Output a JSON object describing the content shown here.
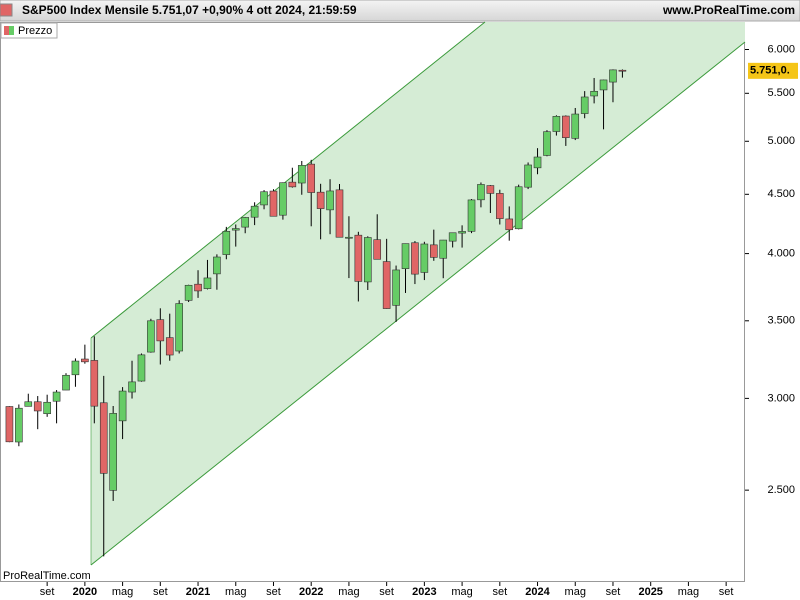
{
  "chart_data": {
    "type": "candlestick",
    "title": "S&P500 Index Mensile 5.751,07 +0,90% 4 ott 2024, 21:59:59",
    "site": "www.ProRealTime.com",
    "watermark": "ProRealTime.com",
    "price_tag": "5.751,0.",
    "log_scale": true,
    "up_color": "#66cc66",
    "down_color": "#e06666",
    "x": [
      "2019-05",
      "2019-06",
      "2019-07",
      "2019-08",
      "2019-09",
      "2019-10",
      "2019-11",
      "2019-12",
      "2020-01",
      "2020-02",
      "2020-03",
      "2020-04",
      "2020-05",
      "2020-06",
      "2020-07",
      "2020-08",
      "2020-09",
      "2020-10",
      "2020-11",
      "2020-12",
      "2021-01",
      "2021-02",
      "2021-03",
      "2021-04",
      "2021-05",
      "2021-06",
      "2021-07",
      "2021-08",
      "2021-09",
      "2021-10",
      "2021-11",
      "2021-12",
      "2022-01",
      "2022-02",
      "2022-03",
      "2022-04",
      "2022-05",
      "2022-06",
      "2022-07",
      "2022-08",
      "2022-09",
      "2022-10",
      "2022-11",
      "2022-12",
      "2023-01",
      "2023-02",
      "2023-03",
      "2023-04",
      "2023-05",
      "2023-06",
      "2023-07",
      "2023-08",
      "2023-09",
      "2023-10",
      "2023-11",
      "2023-12",
      "2024-01",
      "2024-02",
      "2024-03",
      "2024-04",
      "2024-05",
      "2024-06",
      "2024-07",
      "2024-08",
      "2024-09",
      "2024-10"
    ],
    "series": [
      {
        "name": "Prezzo",
        "open": [
          2952,
          2751,
          2953,
          2980,
          2910,
          2983,
          3050,
          3144,
          3244,
          3235,
          2974,
          2499,
          2869,
          3038,
          3105,
          3289,
          3508,
          3385,
          3296,
          3645,
          3764,
          3731,
          3842,
          3992,
          4191,
          4216,
          4300,
          4406,
          4529,
          4317,
          4610,
          4602,
          4778,
          4519,
          4363,
          4540,
          4130,
          4149,
          3781,
          4112,
          3937,
          3609,
          3882,
          4087,
          3853,
          4070,
          3963,
          4100,
          4166,
          4181,
          4451,
          4579,
          4508,
          4285,
          4202,
          4564,
          4743,
          4861,
          5098,
          5257,
          5029,
          5283,
          5471,
          5537,
          5624,
          5758
        ],
        "high": [
          2954,
          2964,
          3028,
          3014,
          3022,
          3050,
          3154,
          3248,
          3338,
          3394,
          3137,
          2955,
          3068,
          3233,
          3280,
          3514,
          3588,
          3550,
          3646,
          3760,
          3870,
          3950,
          3994,
          4218,
          4238,
          4302,
          4429,
          4538,
          4546,
          4608,
          4744,
          4808,
          4819,
          4595,
          4637,
          4593,
          4308,
          4177,
          4140,
          4325,
          4119,
          3906,
          4080,
          4101,
          4095,
          4195,
          4110,
          4170,
          4231,
          4458,
          4607,
          4584,
          4541,
          4393,
          4587,
          4794,
          4932,
          5112,
          5265,
          5264,
          5342,
          5524,
          5670,
          5651,
          5768,
          5767
        ],
        "low": [
          2750,
          2728,
          2952,
          2822,
          2892,
          2855,
          3050,
          3070,
          3214,
          2855,
          2192,
          2447,
          2767,
          2999,
          3101,
          3285,
          3209,
          3233,
          3280,
          3633,
          3663,
          3725,
          3723,
          3955,
          4056,
          4165,
          4233,
          4368,
          4306,
          4279,
          4560,
          4496,
          4223,
          4115,
          4157,
          4132,
          3810,
          3637,
          3721,
          3955,
          3584,
          3492,
          3699,
          3765,
          3795,
          3943,
          3809,
          4049,
          4048,
          4166,
          4385,
          4336,
          4238,
          4104,
          4197,
          4547,
          4683,
          4853,
          5057,
          4954,
          5012,
          5234,
          5391,
          5120,
          5403,
          5674
        ],
        "close": [
          2752,
          2942,
          2980,
          2926,
          2977,
          3038,
          3141,
          3231,
          3226,
          2954,
          2585,
          2912,
          3044,
          3100,
          3271,
          3500,
          3363,
          3270,
          3622,
          3756,
          3714,
          3811,
          3973,
          4181,
          4204,
          4298,
          4395,
          4523,
          4308,
          4605,
          4567,
          4766,
          4516,
          4374,
          4530,
          4132,
          4132,
          3785,
          4130,
          3955,
          3586,
          3872,
          4080,
          3840,
          4077,
          3970,
          4109,
          4169,
          4180,
          4450,
          4589,
          4508,
          4288,
          4194,
          4568,
          4770,
          4846,
          5096,
          5254,
          5036,
          5278,
          5460,
          5522,
          5648,
          5762,
          5751
        ]
      }
    ],
    "xlim": [
      "2019-04",
      "2025-11"
    ],
    "xticks": [
      {
        "value": "2019-09",
        "label": "set"
      },
      {
        "value": "2020-01",
        "label": "2020"
      },
      {
        "value": "2020-05",
        "label": "mag"
      },
      {
        "value": "2020-09",
        "label": "set"
      },
      {
        "value": "2021-01",
        "label": "2021"
      },
      {
        "value": "2021-05",
        "label": "mag"
      },
      {
        "value": "2021-09",
        "label": "set"
      },
      {
        "value": "2022-01",
        "label": "2022"
      },
      {
        "value": "2022-05",
        "label": "mag"
      },
      {
        "value": "2022-09",
        "label": "set"
      },
      {
        "value": "2023-01",
        "label": "2023"
      },
      {
        "value": "2023-05",
        "label": "mag"
      },
      {
        "value": "2023-09",
        "label": "set"
      },
      {
        "value": "2024-01",
        "label": "2024"
      },
      {
        "value": "2024-05",
        "label": "mag"
      },
      {
        "value": "2024-09",
        "label": "set"
      },
      {
        "value": "2025-01",
        "label": "2025"
      },
      {
        "value": "2025-05",
        "label": "mag"
      },
      {
        "value": "2025-09",
        "label": "set"
      }
    ],
    "ylim": [
      2083,
      6337
    ],
    "yticks": [
      {
        "value": 2500,
        "label": "2.500"
      },
      {
        "value": 3000,
        "label": "3.000"
      },
      {
        "value": 3500,
        "label": "3.500"
      },
      {
        "value": 4000,
        "label": "4.000"
      },
      {
        "value": 4500,
        "label": "4.500"
      },
      {
        "value": 5000,
        "label": "5.000"
      },
      {
        "value": 5500,
        "label": "5.500"
      },
      {
        "value": 6000,
        "label": "6.000"
      }
    ]
  }
}
